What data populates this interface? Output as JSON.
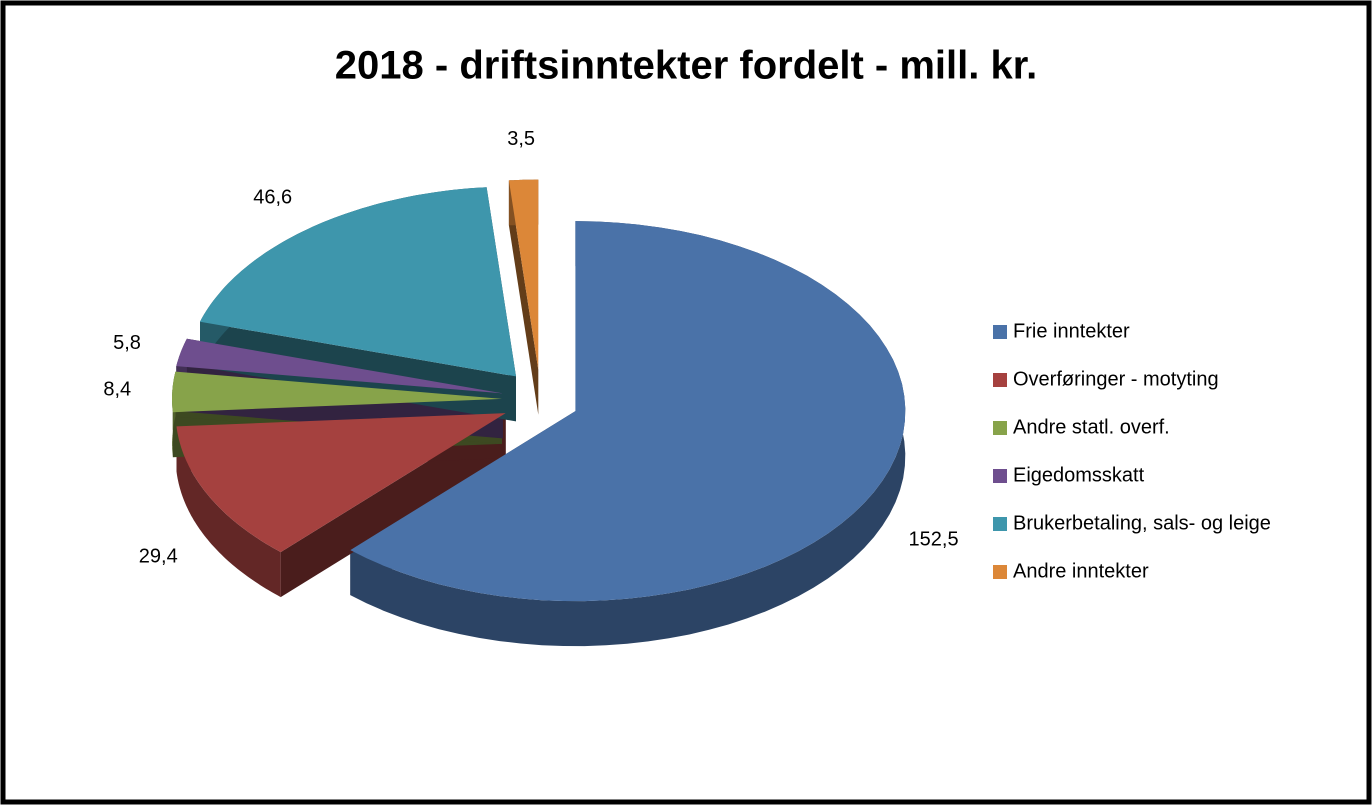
{
  "chart_data": {
    "type": "pie",
    "title": "2018 - driftsinntekter fordelt - mill. kr.",
    "categories": [
      "Frie inntekter",
      "Overføringer - motyting",
      "Andre statl. overf.",
      "Eigedomsskatt",
      "Brukerbetaling, sals- og leige",
      "Andre inntekter"
    ],
    "values": [
      152.5,
      29.4,
      8.4,
      5.8,
      46.6,
      3.5
    ],
    "value_labels": [
      "152,5",
      "29,4",
      "8,4",
      "5,8",
      "46,6",
      "3,5"
    ],
    "colors": [
      "#4a72a8",
      "#a5413f",
      "#87a34a",
      "#6e4e8e",
      "#3e96ac",
      "#dc8738"
    ],
    "legend": "right"
  }
}
